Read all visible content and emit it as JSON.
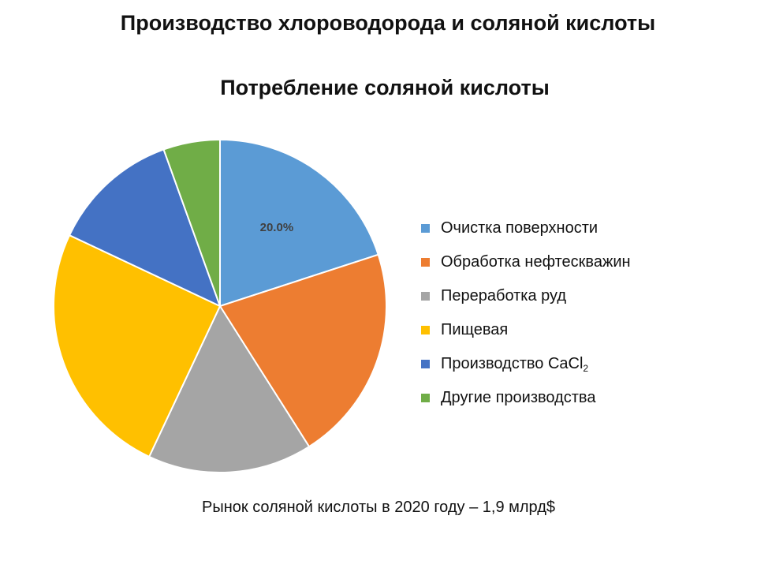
{
  "slide": {
    "title": "Производство хлороводорода и соляной кислоты",
    "footnote": "Рынок соляной кислоты в 2020 году – 1,9 млрд$"
  },
  "chart_data": {
    "type": "pie",
    "title": "Потребление соляной кислоты",
    "legend_position": "right",
    "slices": [
      {
        "label": "Очистка поверхности",
        "value": 20.0,
        "color": "#5B9BD5",
        "data_label": "20.0%"
      },
      {
        "label": "Обработка нефтескважин",
        "value": 21.0,
        "color": "#ED7D31"
      },
      {
        "label": "Переработка руд",
        "value": 16.0,
        "color": "#A5A5A5"
      },
      {
        "label": "Пищевая",
        "value": 25.0,
        "color": "#FFC000"
      },
      {
        "label": "Производство CaCl",
        "label_subscript": "2",
        "value": 12.5,
        "color": "#4472C4"
      },
      {
        "label": "Другие производства",
        "value": 5.5,
        "color": "#70AD47"
      }
    ]
  }
}
